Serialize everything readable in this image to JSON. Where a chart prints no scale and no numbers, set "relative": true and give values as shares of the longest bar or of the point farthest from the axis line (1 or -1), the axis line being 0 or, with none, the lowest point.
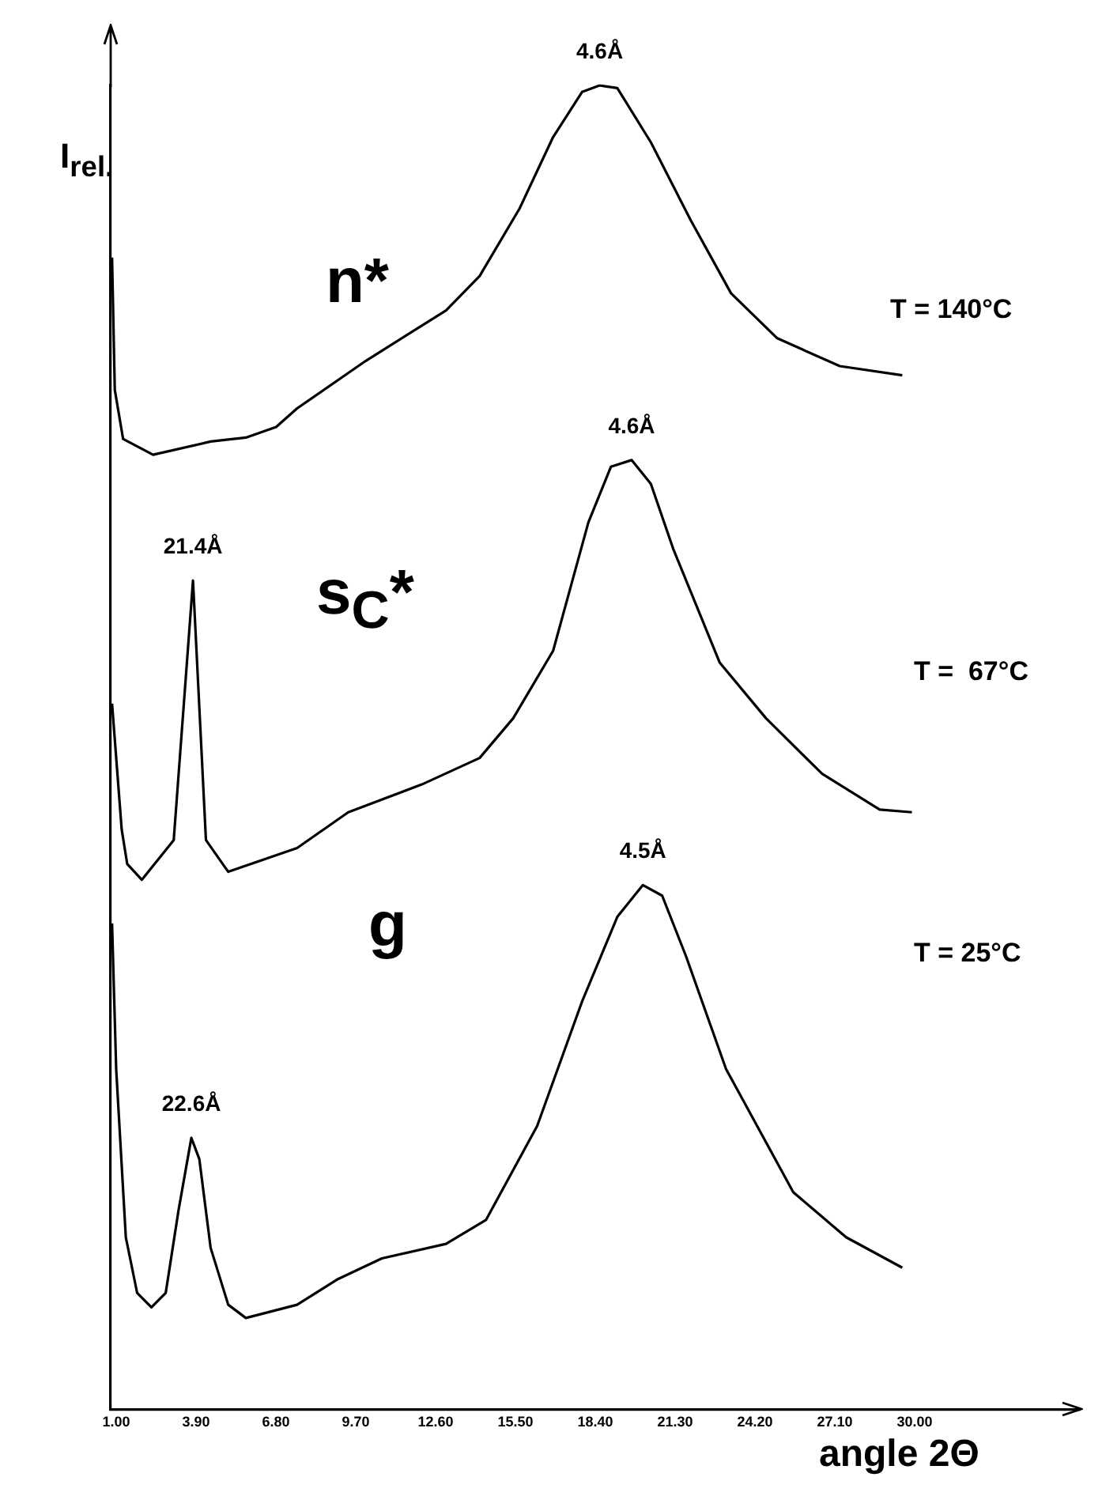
{
  "chart_data": {
    "type": "line",
    "relative": true,
    "xlabel": "angle 2Θ",
    "ylabel": "I$_{rel.}$",
    "xlim": [
      0.8,
      36
    ],
    "xticks": [
      {
        "value": 1,
        "label": "1.00"
      },
      {
        "value": 3.9,
        "label": "3.90"
      },
      {
        "value": 6.8,
        "label": "6.80"
      },
      {
        "value": 9.7,
        "label": "9.70"
      },
      {
        "value": 12.6,
        "label": "12.60"
      },
      {
        "value": 15.5,
        "label": "15.50"
      },
      {
        "value": 18.4,
        "label": "18.40"
      },
      {
        "value": 21.3,
        "label": "21.30"
      },
      {
        "value": 24.2,
        "label": "24.20"
      },
      {
        "value": 27.1,
        "label": "27.10"
      },
      {
        "value": 30,
        "label": "30.00"
      }
    ],
    "legend": false,
    "grid": false,
    "marker": "none",
    "line_style": "solid",
    "series": [
      {
        "color": "#000000",
        "x": [
          0.85,
          0.95,
          1.25,
          2.34,
          4.43,
          5.71,
          6.81,
          7.57,
          10.07,
          12.98,
          14.2,
          15.65,
          16.87,
          17.92,
          18.56,
          19.2,
          20.42,
          21.87,
          23.33,
          25.01,
          27.28,
          29.55
        ],
        "values": [
          0.87,
          0.77,
          0.733,
          0.721,
          0.731,
          0.734,
          0.742,
          0.756,
          0.792,
          0.83,
          0.856,
          0.907,
          0.961,
          0.995,
          1.0,
          0.998,
          0.957,
          0.898,
          0.843,
          0.809,
          0.788,
          0.781
        ]
      },
      {
        "color": "#000000",
        "x": [
          0.85,
          1.2,
          1.4,
          1.93,
          3.09,
          3.79,
          4.26,
          5.07,
          7.57,
          9.43,
          12.1,
          14.2,
          15.42,
          16.87,
          18.15,
          18.97,
          19.72,
          20.42,
          21.23,
          22.92,
          24.6,
          26.64,
          28.73,
          29.9
        ],
        "values": [
          0.533,
          0.438,
          0.412,
          0.4,
          0.43,
          0.626,
          0.43,
          0.406,
          0.424,
          0.451,
          0.472,
          0.492,
          0.522,
          0.573,
          0.67,
          0.712,
          0.717,
          0.699,
          0.65,
          0.564,
          0.522,
          0.48,
          0.453,
          0.451
        ]
      },
      {
        "color": "#000000",
        "x": [
          0.85,
          1.0,
          1.35,
          1.76,
          2.28,
          2.8,
          3.27,
          3.73,
          4.02,
          4.43,
          5.07,
          5.71,
          7.57,
          9.02,
          10.65,
          12.98,
          14.43,
          16.29,
          17.92,
          19.2,
          20.13,
          20.83,
          21.7,
          23.15,
          25.59,
          27.51,
          29.55
        ],
        "values": [
          0.367,
          0.257,
          0.13,
          0.088,
          0.077,
          0.088,
          0.151,
          0.205,
          0.189,
          0.122,
          0.079,
          0.069,
          0.079,
          0.098,
          0.114,
          0.125,
          0.143,
          0.214,
          0.308,
          0.372,
          0.396,
          0.388,
          0.342,
          0.257,
          0.164,
          0.13,
          0.107
        ]
      }
    ],
    "annotations": [
      {
        "text": "4.6Å",
        "x": 18.56,
        "y": 1.0
      },
      {
        "text": "4.6Å",
        "x": 19.72,
        "y": 0.717
      },
      {
        "text": "21.4Å",
        "x": 3.79,
        "y": 0.626
      },
      {
        "text": "4.5Å",
        "x": 20.13,
        "y": 0.396
      },
      {
        "text": "22.6Å",
        "x": 3.73,
        "y": 0.205
      },
      "n*",
      "s$_{C}$*",
      "g",
      "T = 140°C",
      "T =  67°C",
      "T = 25°C"
    ]
  }
}
